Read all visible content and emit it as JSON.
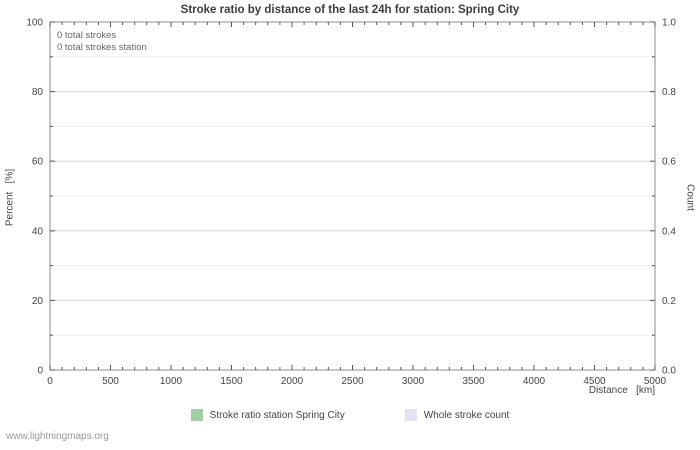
{
  "footer": "www.lightningmaps.org",
  "chart_data": {
    "type": "line",
    "title": "Stroke ratio by distance of the last 24h for station: Spring City",
    "grid": true,
    "legend_position": "bottom",
    "x_axis": {
      "label": "Distance   [km]",
      "min": 0,
      "max": 5000,
      "tick_step": 500,
      "minor_step": 100,
      "ticks": [
        0,
        500,
        1000,
        1500,
        2000,
        2500,
        3000,
        3500,
        4000,
        4500,
        5000
      ]
    },
    "left_axis": {
      "label": "Percent   [%]",
      "min": 0,
      "max": 100,
      "tick_step": 20,
      "minor_step": 10,
      "ticks": [
        0,
        20,
        40,
        60,
        80,
        100
      ]
    },
    "right_axis": {
      "label": "Count",
      "min": 0,
      "max": 1,
      "ticks": [
        "0.0",
        "0.2",
        "0.4",
        "0.6",
        "0.8",
        "1.0"
      ]
    },
    "annotations": [
      "0 total strokes",
      "0 total strokes station"
    ],
    "series": [
      {
        "name": "Stroke ratio station Spring City",
        "color": "#a3cda3",
        "points": []
      },
      {
        "name": "Whole stroke count",
        "color": "#e3e3f4",
        "points": []
      }
    ]
  }
}
